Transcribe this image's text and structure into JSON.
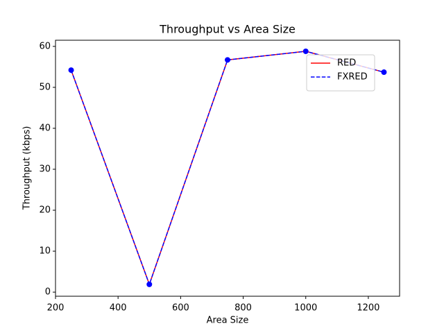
{
  "chart_data": {
    "type": "line",
    "title": "Throughput vs Area Size",
    "x_label": "Area Size",
    "y_label": "Throughput (kbps)",
    "x": [
      250,
      500,
      750,
      1000,
      1250
    ],
    "series": [
      {
        "name": "RED",
        "color": "#ff0000",
        "dash": false,
        "markers": false,
        "values": [
          54.2,
          1.9,
          56.7,
          58.8,
          53.7
        ]
      },
      {
        "name": "FXRED",
        "color": "#0000ff",
        "dash": true,
        "markers": true,
        "values": [
          54.2,
          1.9,
          56.7,
          58.8,
          53.7
        ]
      }
    ],
    "xlim": [
      200,
      1300
    ],
    "xticks": [
      200,
      400,
      600,
      800,
      1000,
      1200
    ],
    "ylim": [
      -1.0,
      61.5
    ],
    "yticks": [
      0,
      10,
      20,
      30,
      40,
      50,
      60
    ],
    "legend": "upper right"
  }
}
